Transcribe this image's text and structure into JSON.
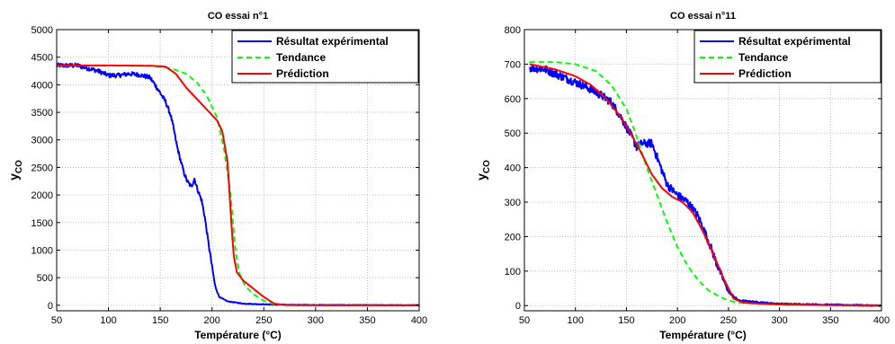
{
  "colors": {
    "experimental": "#0000ff",
    "tendance": "#00ff00",
    "prediction": "#ff0000",
    "grid": "#b0b0b0",
    "axis": "#000000"
  },
  "chart_data": [
    {
      "type": "line",
      "title": "CO essai n°1",
      "xlabel": "Température (°C)",
      "ylabel_main": "y",
      "ylabel_sub": "CO",
      "xlim": [
        50,
        400
      ],
      "ylim": [
        -100,
        5000
      ],
      "xticks": [
        50,
        100,
        150,
        200,
        250,
        300,
        350,
        400
      ],
      "yticks": [
        0,
        500,
        1000,
        1500,
        2000,
        2500,
        3000,
        3500,
        4000,
        4500,
        5000
      ],
      "grid": true,
      "legend_position": "top-right",
      "series": [
        {
          "name": "Résultat expérimental",
          "style": "solid",
          "color": "#0000ff",
          "noise": 40,
          "points": [
            [
              50,
              4350
            ],
            [
              70,
              4350
            ],
            [
              90,
              4250
            ],
            [
              100,
              4170
            ],
            [
              110,
              4170
            ],
            [
              120,
              4200
            ],
            [
              130,
              4180
            ],
            [
              140,
              4130
            ],
            [
              145,
              4000
            ],
            [
              150,
              3850
            ],
            [
              155,
              3700
            ],
            [
              160,
              3450
            ],
            [
              163,
              3200
            ],
            [
              166,
              2900
            ],
            [
              170,
              2600
            ],
            [
              173,
              2400
            ],
            [
              176,
              2250
            ],
            [
              180,
              2150
            ],
            [
              183,
              2300
            ],
            [
              186,
              2100
            ],
            [
              190,
              1900
            ],
            [
              193,
              1600
            ],
            [
              196,
              1200
            ],
            [
              200,
              700
            ],
            [
              203,
              350
            ],
            [
              207,
              150
            ],
            [
              215,
              70
            ],
            [
              230,
              30
            ],
            [
              260,
              10
            ],
            [
              300,
              5
            ],
            [
              400,
              0
            ]
          ]
        },
        {
          "name": "Tendance",
          "style": "dashed",
          "color": "#00ff00",
          "noise": 0,
          "points": [
            [
              50,
              4350
            ],
            [
              100,
              4350
            ],
            [
              140,
              4345
            ],
            [
              160,
              4300
            ],
            [
              175,
              4200
            ],
            [
              185,
              4050
            ],
            [
              195,
              3800
            ],
            [
              205,
              3400
            ],
            [
              212,
              2800
            ],
            [
              218,
              2000
            ],
            [
              222,
              1100
            ],
            [
              226,
              600
            ],
            [
              232,
              350
            ],
            [
              240,
              200
            ],
            [
              250,
              80
            ],
            [
              260,
              20
            ],
            [
              270,
              5
            ],
            [
              300,
              0
            ],
            [
              400,
              0
            ]
          ]
        },
        {
          "name": "Prédiction",
          "style": "solid",
          "color": "#ff0000",
          "noise": 0,
          "points": [
            [
              50,
              4350
            ],
            [
              100,
              4350
            ],
            [
              140,
              4345
            ],
            [
              155,
              4330
            ],
            [
              165,
              4200
            ],
            [
              175,
              3950
            ],
            [
              185,
              3750
            ],
            [
              195,
              3550
            ],
            [
              205,
              3350
            ],
            [
              210,
              3150
            ],
            [
              215,
              2600
            ],
            [
              217,
              2000
            ],
            [
              219,
              1400
            ],
            [
              221,
              900
            ],
            [
              224,
              600
            ],
            [
              230,
              450
            ],
            [
              240,
              300
            ],
            [
              250,
              150
            ],
            [
              260,
              30
            ],
            [
              270,
              5
            ],
            [
              300,
              0
            ],
            [
              400,
              0
            ]
          ]
        }
      ]
    },
    {
      "type": "line",
      "title": "CO essai n°11",
      "xlabel": "Température (°C)",
      "ylabel_main": "y",
      "ylabel_sub": "CO",
      "xlim": [
        50,
        400
      ],
      "ylim": [
        -15,
        800
      ],
      "xticks": [
        50,
        100,
        150,
        200,
        250,
        300,
        350,
        400
      ],
      "yticks": [
        0,
        100,
        200,
        300,
        400,
        500,
        600,
        700,
        800
      ],
      "grid": true,
      "legend_position": "top-right",
      "series": [
        {
          "name": "Résultat expérimental",
          "style": "solid",
          "color": "#0000ff",
          "noise": 12,
          "points": [
            [
              55,
              690
            ],
            [
              70,
              685
            ],
            [
              90,
              660
            ],
            [
              110,
              635
            ],
            [
              125,
              610
            ],
            [
              135,
              590
            ],
            [
              145,
              545
            ],
            [
              155,
              490
            ],
            [
              160,
              460
            ],
            [
              165,
              470
            ],
            [
              170,
              470
            ],
            [
              175,
              470
            ],
            [
              180,
              430
            ],
            [
              185,
              390
            ],
            [
              190,
              350
            ],
            [
              200,
              320
            ],
            [
              210,
              300
            ],
            [
              220,
              260
            ],
            [
              230,
              190
            ],
            [
              240,
              110
            ],
            [
              250,
              40
            ],
            [
              260,
              15
            ],
            [
              300,
              5
            ],
            [
              400,
              0
            ]
          ]
        },
        {
          "name": "Tendance",
          "style": "dashed",
          "color": "#00ff00",
          "noise": 0,
          "points": [
            [
              55,
              706
            ],
            [
              80,
              706
            ],
            [
              100,
              700
            ],
            [
              120,
              680
            ],
            [
              135,
              640
            ],
            [
              150,
              570
            ],
            [
              160,
              490
            ],
            [
              170,
              400
            ],
            [
              180,
              320
            ],
            [
              190,
              240
            ],
            [
              200,
              170
            ],
            [
              210,
              115
            ],
            [
              220,
              75
            ],
            [
              230,
              45
            ],
            [
              240,
              28
            ],
            [
              250,
              15
            ],
            [
              260,
              8
            ],
            [
              300,
              3
            ],
            [
              400,
              0
            ]
          ]
        },
        {
          "name": "Prédiction",
          "style": "solid",
          "color": "#ff0000",
          "noise": 0,
          "points": [
            [
              55,
              700
            ],
            [
              80,
              685
            ],
            [
              100,
              665
            ],
            [
              115,
              640
            ],
            [
              130,
              600
            ],
            [
              145,
              545
            ],
            [
              155,
              495
            ],
            [
              165,
              440
            ],
            [
              175,
              380
            ],
            [
              185,
              340
            ],
            [
              195,
              315
            ],
            [
              205,
              300
            ],
            [
              215,
              270
            ],
            [
              225,
              215
            ],
            [
              235,
              150
            ],
            [
              245,
              80
            ],
            [
              255,
              20
            ],
            [
              265,
              8
            ],
            [
              300,
              3
            ],
            [
              400,
              0
            ]
          ]
        }
      ]
    }
  ]
}
